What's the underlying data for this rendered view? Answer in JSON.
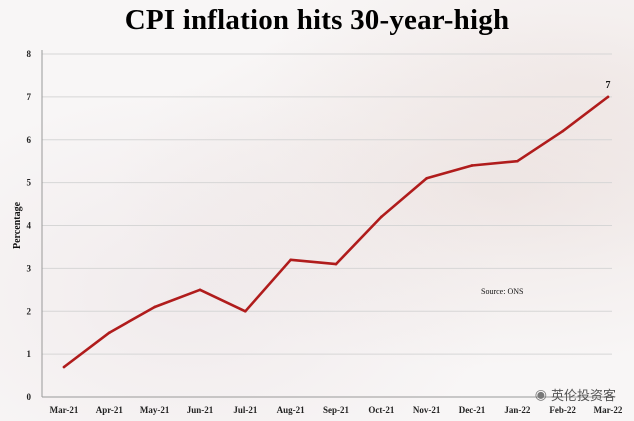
{
  "title": "CPI inflation hits 30-year-high",
  "watermark": "英伦投资客",
  "chart_data": {
    "type": "line",
    "title": "CPI inflation hits 30-year-high",
    "xlabel": "",
    "ylabel": "Percentage",
    "categories": [
      "Mar-21",
      "Apr-21",
      "May-21",
      "Jun-21",
      "Jul-21",
      "Aug-21",
      "Sep-21",
      "Oct-21",
      "Nov-21",
      "Dec-21",
      "Jan-22",
      "Feb-22",
      "Mar-22"
    ],
    "values": [
      0.7,
      1.5,
      2.1,
      2.5,
      2.0,
      3.2,
      3.1,
      4.2,
      5.1,
      5.4,
      5.5,
      6.2,
      7.0
    ],
    "ylim": [
      0,
      8
    ],
    "yticks": [
      0,
      1,
      2,
      3,
      4,
      5,
      6,
      7,
      8
    ],
    "grid": true,
    "line_color": "#b01c1c",
    "annotations": [
      {
        "text": "7",
        "category": "Mar-22"
      },
      {
        "text": "Source: ONS"
      }
    ]
  }
}
